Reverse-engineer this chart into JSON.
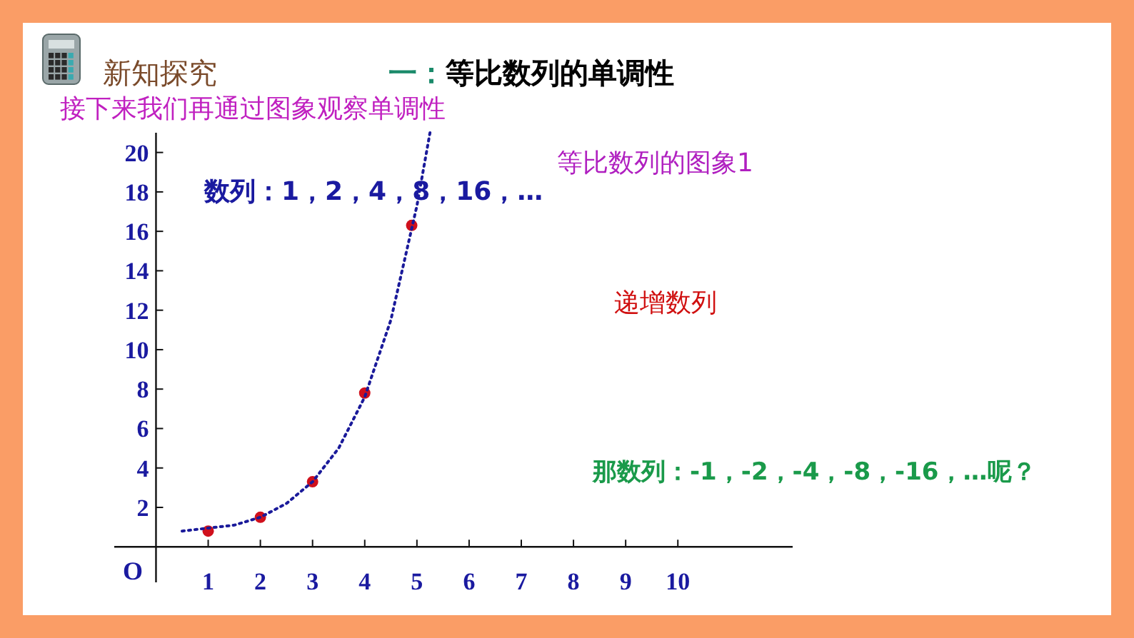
{
  "chart_data": {
    "type": "scatter",
    "title": "一：等比数列的单调性",
    "subtitle": "接下来我们再通过图象观察单调性",
    "annotations": [
      "新知探究",
      "数列：1，2，4，8，16，…",
      "等比数列的图象1",
      "递增数列",
      "那数列：-1，-2，-4，-8，-16，…呢？",
      "O"
    ],
    "series": [
      {
        "color": "#d0101c",
        "marker": "circle",
        "x": [
          1,
          2,
          3,
          4,
          4.9
        ],
        "values": [
          0.8,
          1.5,
          3.3,
          7.8,
          16.3
        ]
      },
      {
        "type": "line",
        "color": "#1a1a9a",
        "line_style": "dotted",
        "marker": "none",
        "x": [
          0.5,
          1,
          1.5,
          2,
          2.5,
          3,
          3.5,
          4,
          4.5,
          5,
          5.25
        ],
        "values": [
          0.8,
          0.95,
          1.1,
          1.5,
          2.2,
          3.3,
          5.0,
          7.6,
          11.5,
          17.3,
          21
        ]
      }
    ],
    "xlim": [
      -0.8,
      12.2
    ],
    "ylim": [
      -1.8,
      21
    ],
    "xticks": [
      1,
      2,
      3,
      4,
      5,
      6,
      7,
      8,
      9,
      10
    ],
    "yticks": [
      2,
      4,
      6,
      8,
      10,
      12,
      14,
      16,
      18,
      20
    ],
    "grid": false
  }
}
